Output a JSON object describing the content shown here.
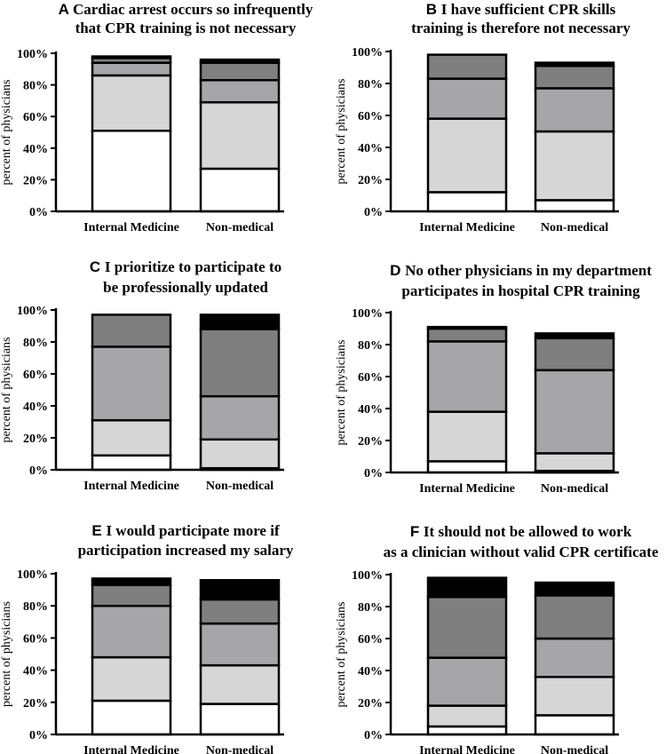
{
  "figure": {
    "stack_colors": [
      "#ffffff",
      "#d6d6d6",
      "#a6a6aa",
      "#7f7f7f",
      "#000000"
    ]
  },
  "chart_data": [
    {
      "type": "bar",
      "stacked": true,
      "panel": "A",
      "title_lines": [
        "Cardiac arrest occurs so infrequently",
        "that CPR training is not necessary"
      ],
      "ylabel": "percent of physicians",
      "ytick_labels": [
        "0%",
        "20%",
        "40%",
        "60%",
        "80%",
        "100%"
      ],
      "ylim": [
        0,
        100
      ],
      "categories": [
        "Internal Medicine",
        "Non-medical"
      ],
      "stacks": [
        [
          51,
          35,
          8,
          3,
          1
        ],
        [
          27,
          42,
          14,
          11,
          2
        ]
      ]
    },
    {
      "type": "bar",
      "stacked": true,
      "panel": "B",
      "title_lines": [
        "I have sufficient CPR skills",
        "training is therefore not necessary"
      ],
      "ylabel": "percent of physicians",
      "ytick_labels": [
        "0%",
        "20%",
        "40%",
        "60%",
        "80%",
        "100%"
      ],
      "ylim": [
        0,
        100
      ],
      "categories": [
        "Internal Medicine",
        "Non-medical"
      ],
      "stacks": [
        [
          12,
          46,
          25,
          15,
          0
        ],
        [
          7,
          43,
          27,
          14,
          2
        ]
      ]
    },
    {
      "type": "bar",
      "stacked": true,
      "panel": "C",
      "title_lines": [
        "I prioritize to participate to",
        "be professionally updated"
      ],
      "ylabel": "percent of physicians",
      "ytick_labels": [
        "0%",
        "20%",
        "40%",
        "60%",
        "80%",
        "100%"
      ],
      "ylim": [
        0,
        100
      ],
      "categories": [
        "Internal Medicine",
        "Non-medical"
      ],
      "stacks": [
        [
          9,
          22,
          46,
          20,
          0
        ],
        [
          1,
          18,
          27,
          42,
          9
        ]
      ]
    },
    {
      "type": "bar",
      "stacked": true,
      "panel": "D",
      "title_lines": [
        "No other physicians in my  department",
        "participates in hospital CPR training"
      ],
      "ylabel": "percent of physicians",
      "ytick_labels": [
        "0%",
        "20%",
        "40%",
        "60%",
        "80%",
        "100%"
      ],
      "ylim": [
        0,
        100
      ],
      "categories": [
        "Internal Medicine",
        "Non-medical"
      ],
      "stacks": [
        [
          7,
          31,
          44,
          8,
          1
        ],
        [
          1,
          11,
          52,
          20,
          3
        ]
      ]
    },
    {
      "type": "bar",
      "stacked": true,
      "panel": "E",
      "title_lines": [
        "I would participate more if",
        "participation increased my salary"
      ],
      "ylabel": "percent of physicians",
      "ytick_labels": [
        "0%",
        "20%",
        "40%",
        "60%",
        "80%",
        "100%"
      ],
      "ylim": [
        0,
        100
      ],
      "categories": [
        "Internal Medicine",
        "Non-medical"
      ],
      "stacks": [
        [
          21,
          27,
          32,
          13,
          4
        ],
        [
          19,
          24,
          26,
          15,
          12
        ]
      ]
    },
    {
      "type": "bar",
      "stacked": true,
      "panel": "F",
      "title_lines": [
        "It should not be allowed to work",
        "as a clinician without valid CPR certificate"
      ],
      "ylabel": "percent of physicians",
      "ytick_labels": [
        "0%",
        "20%",
        "40%",
        "60%",
        "80%",
        "100%"
      ],
      "ylim": [
        0,
        100
      ],
      "categories": [
        "Internal Medicine",
        "Non-medical"
      ],
      "stacks": [
        [
          5,
          13,
          30,
          38,
          12
        ],
        [
          12,
          24,
          24,
          27,
          8
        ]
      ]
    }
  ]
}
